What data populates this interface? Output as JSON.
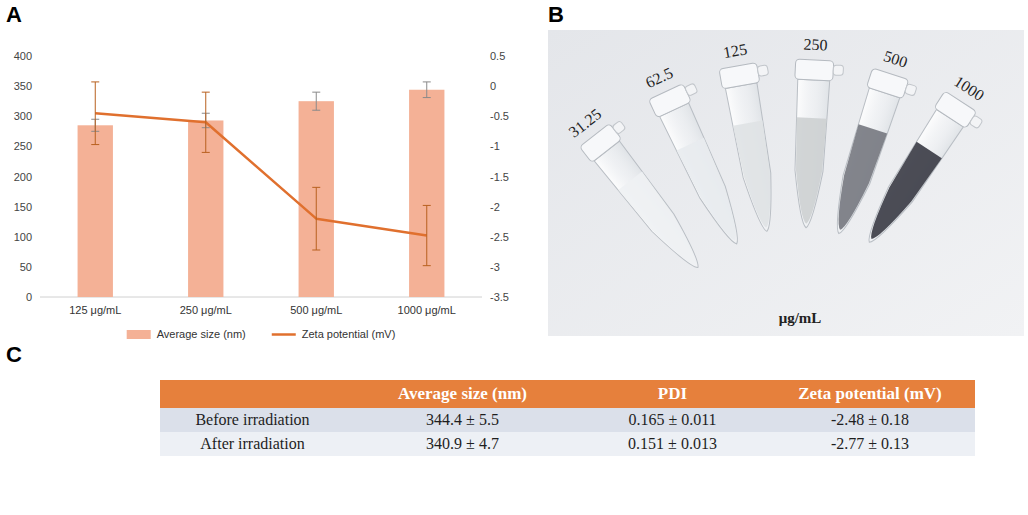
{
  "chart_data": {
    "type": "bar",
    "categories": [
      "125 μg/mL",
      "250 μg/mL",
      "500 μg/mL",
      "1000 μg/mL"
    ],
    "series": [
      {
        "name": "Average size (nm)",
        "type": "bar",
        "color": "#f4b196",
        "values": [
          285,
          293,
          325,
          344
        ],
        "errors": [
          10,
          12,
          15,
          13
        ]
      },
      {
        "name": "Zeta potential (mV)",
        "type": "line",
        "axis": "y2",
        "color": "#e0702e",
        "values": [
          -0.45,
          -0.6,
          -2.2,
          -2.48
        ],
        "errors": [
          0.52,
          0.5,
          0.52,
          0.5
        ]
      }
    ],
    "ylim": [
      0,
      400
    ],
    "yticks": [
      0,
      50,
      100,
      150,
      200,
      250,
      300,
      350,
      400
    ],
    "y2lim": [
      -3.5,
      0.5
    ],
    "y2ticks": [
      -3.5,
      -3,
      -2.5,
      -2,
      -1.5,
      -1,
      -0.5,
      0,
      0.5
    ],
    "grid": false,
    "legend": "bottom"
  },
  "panel_labels": [
    "A",
    "B",
    "C"
  ],
  "photo": {
    "concentrations": [
      "31.25",
      "62.5",
      "125",
      "250",
      "500",
      "1000"
    ],
    "unit": "μg/mL"
  },
  "table": {
    "header": [
      "Average size (nm)",
      "PDI",
      "Zeta potential (mV)"
    ],
    "rows": [
      {
        "label": "Before irradiation",
        "cells": [
          "344.4 ± 5.5",
          "0.165 ± 0.011",
          "-2.48 ± 0.18"
        ]
      },
      {
        "label": "After irradiation",
        "cells": [
          "340.9 ± 4.7",
          "0.151 ± 0.013",
          "-2.77 ± 0.13"
        ]
      }
    ]
  }
}
